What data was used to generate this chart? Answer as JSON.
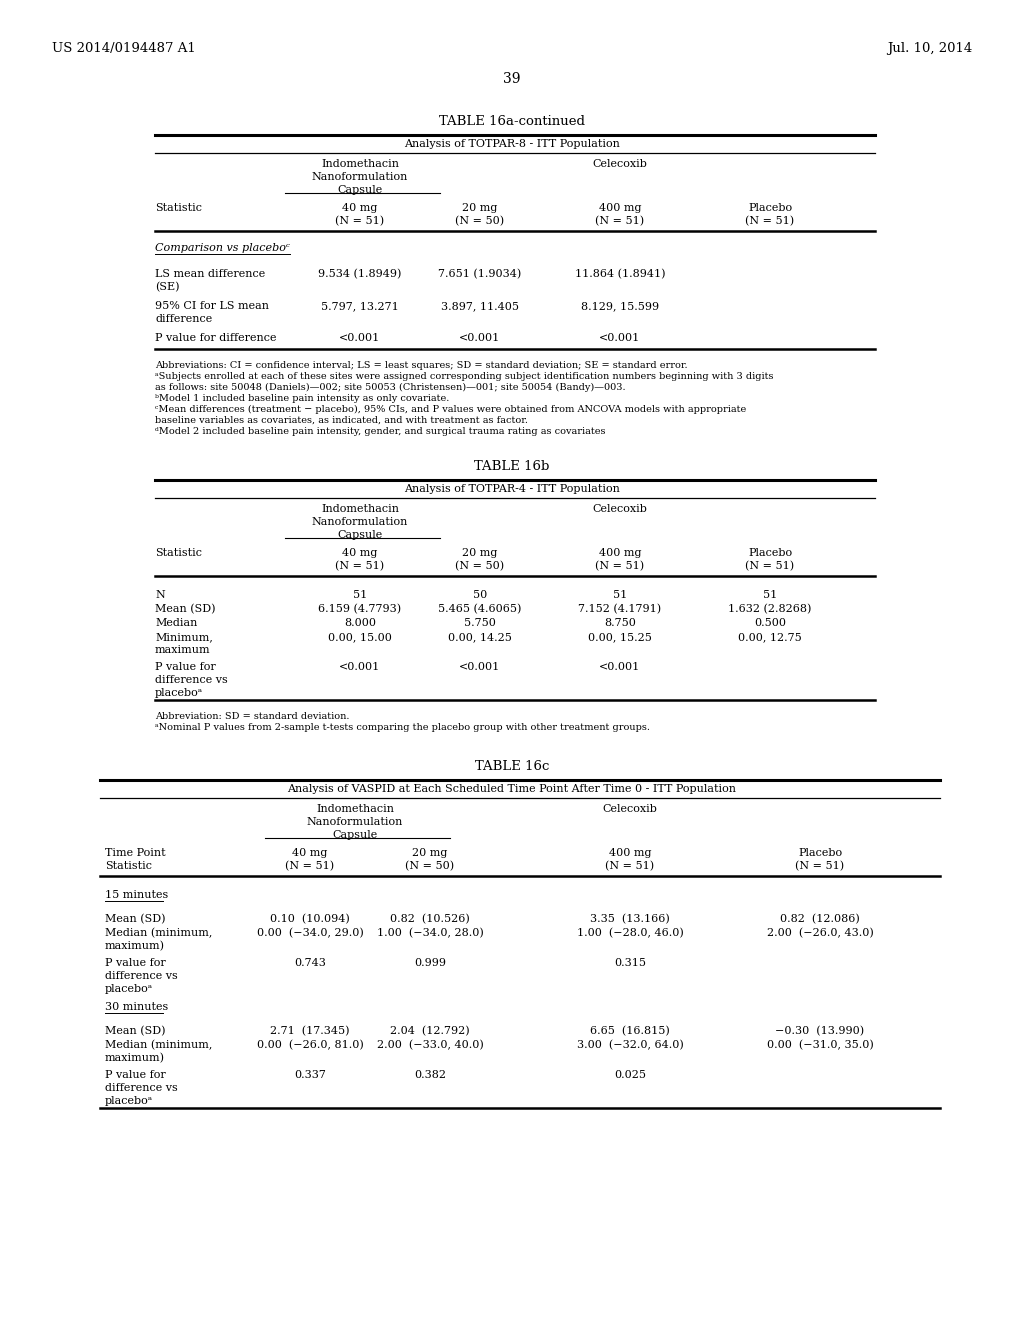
{
  "header_left": "US 2014/0194487 A1",
  "header_right": "Jul. 10, 2014",
  "page_number": "39",
  "background_color": "#ffffff",
  "table16a_title": "TABLE 16a-continued",
  "table16a_subtitle": "Analysis of TOTPAR-8 - ITT Population",
  "table16b_title": "TABLE 16b",
  "table16b_subtitle": "Analysis of TOTPAR-4 - ITT Population",
  "table16c_title": "TABLE 16c",
  "table16c_subtitle": "Analysis of VASPID at Each Scheduled Time Point After Time 0 - ITT Population",
  "table16a_footnotes": [
    "Abbreviations: CI = confidence interval; LS = least squares; SD = standard deviation; SE = standard error.",
    "ᵃSubjects enrolled at each of these sites were assigned corresponding subject identification numbers beginning with 3 digits",
    "as follows: site 50048 (Daniels)—002; site 50053 (Christensen)—001; site 50054 (Bandy)—003.",
    "ᵇModel 1 included baseline pain intensity as only covariate.",
    "ᶜMean differences (treatment − placebo), 95% CIs, and P values were obtained from ANCOVA models with appropriate",
    "baseline variables as covariates, as indicated, and with treatment as factor.",
    "ᵈModel 2 included baseline pain intensity, gender, and surgical trauma rating as covariates"
  ],
  "table16b_footnotes": [
    "Abbreviation: SD = standard deviation.",
    "ᵃNominal P values from 2-sample t-tests comparing the placebo group with other treatment groups."
  ]
}
